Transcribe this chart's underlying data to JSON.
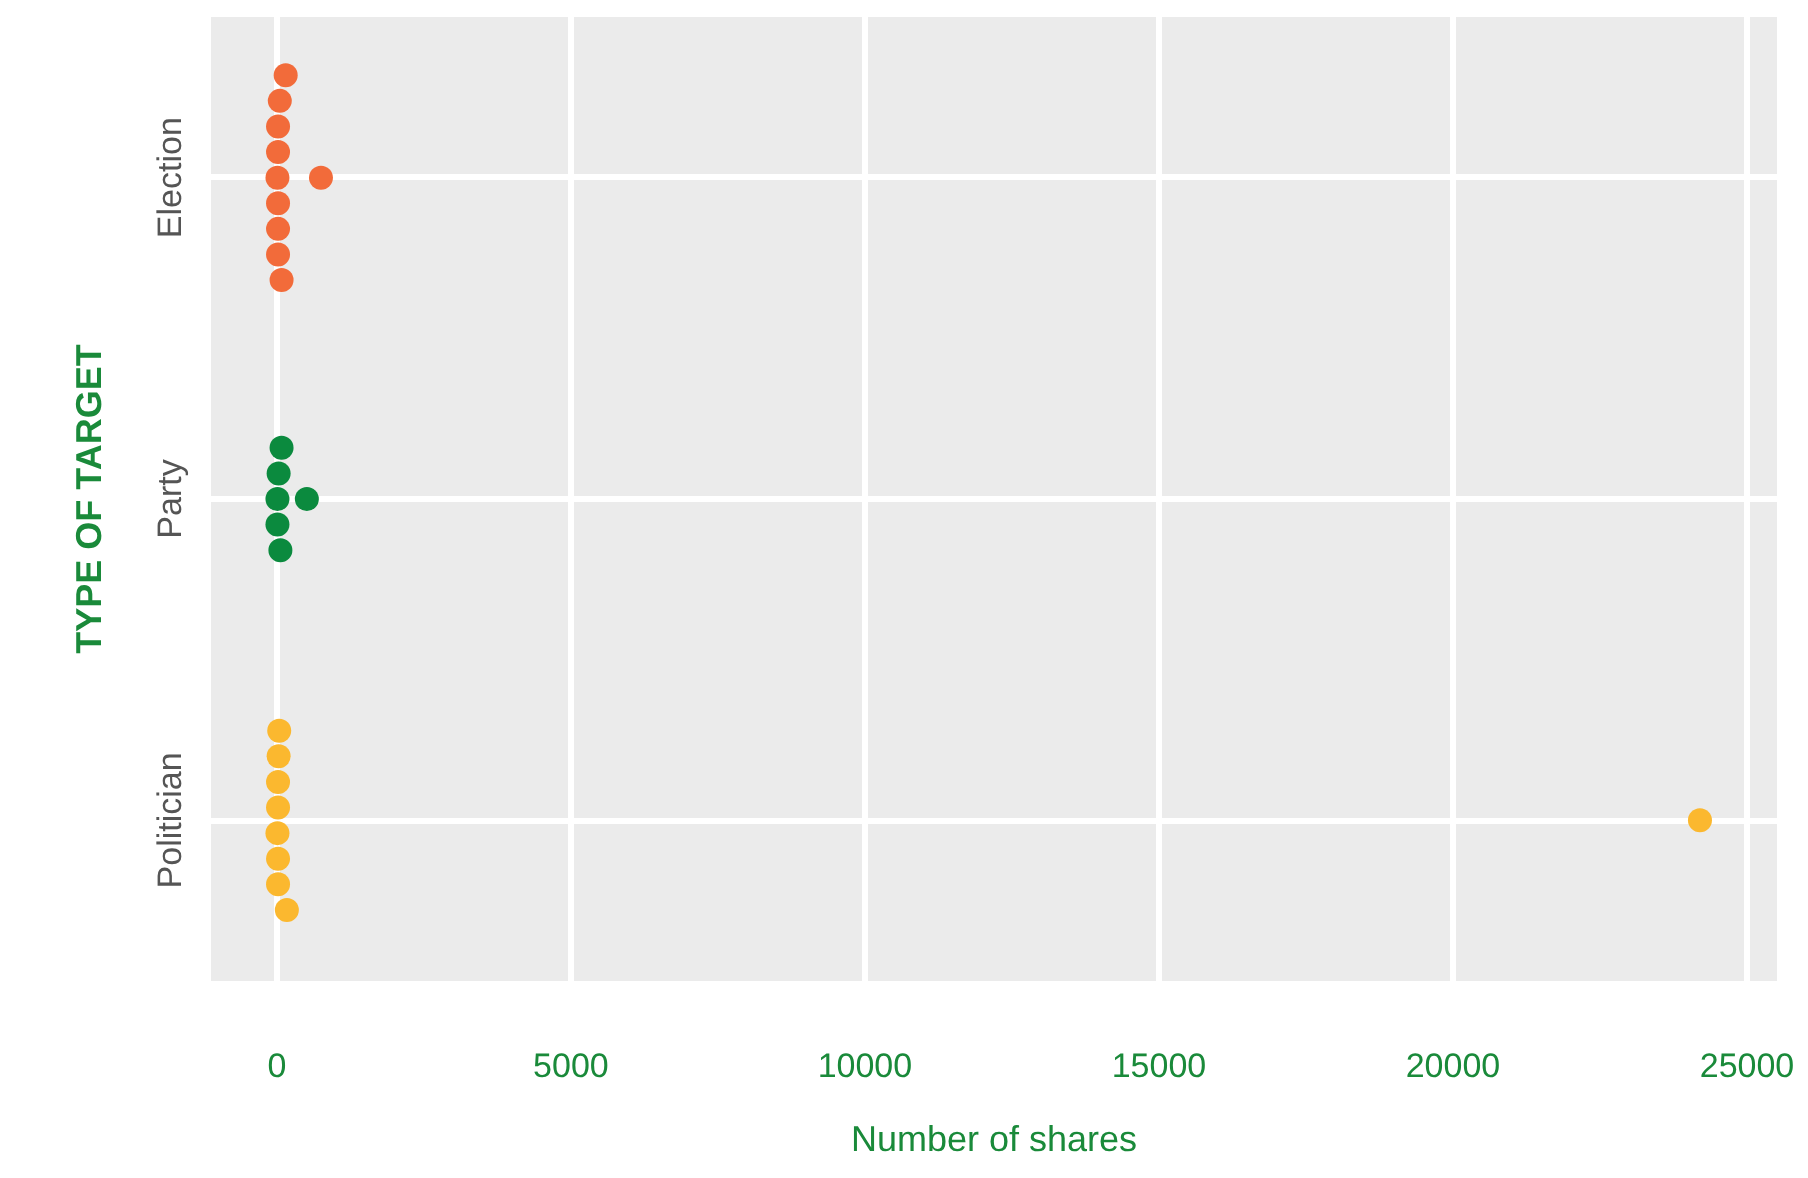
{
  "chart_data": {
    "type": "scatter",
    "orientation": "horizontal",
    "xlabel": "Number of shares",
    "ylabel": "TYPE OF TARGET",
    "categories": [
      "Election",
      "Party",
      "Politician"
    ],
    "xlim": [
      -1120,
      25510
    ],
    "xticks": [
      0,
      5000,
      10000,
      15000,
      20000,
      25000
    ],
    "grid": true,
    "marker": "circle",
    "series": [
      {
        "color": "#f26b3a",
        "x": [
          "Election",
          "Election",
          "Election",
          "Election",
          "Election",
          "Election",
          "Election",
          "Election",
          "Election",
          "Election"
        ],
        "values": [
          150,
          50,
          20,
          20,
          10,
          20,
          20,
          20,
          80,
          750
        ]
      },
      {
        "color": "#0b8a3e",
        "x": [
          "Party",
          "Party",
          "Party",
          "Party",
          "Party",
          "Party"
        ],
        "values": [
          80,
          30,
          10,
          10,
          60,
          510
        ]
      },
      {
        "color": "#fbb82f",
        "x": [
          "Politician",
          "Politician",
          "Politician",
          "Politician",
          "Politician",
          "Politician",
          "Politician",
          "Politician",
          "Politician"
        ],
        "values": [
          40,
          30,
          20,
          20,
          10,
          20,
          20,
          170,
          24200
        ]
      }
    ]
  }
}
